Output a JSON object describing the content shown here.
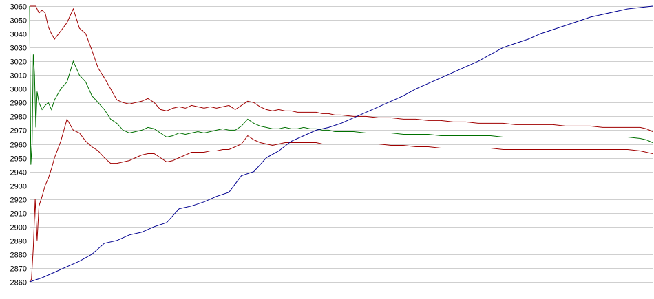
{
  "chart_data": {
    "type": "line",
    "title": "",
    "xlabel": "",
    "ylabel": "",
    "ylim": [
      2860,
      3060
    ],
    "xlim": [
      0,
      100
    ],
    "yticks": [
      2860,
      2870,
      2880,
      2890,
      2900,
      2910,
      2920,
      2930,
      2940,
      2950,
      2960,
      2970,
      2980,
      2990,
      3000,
      3010,
      3020,
      3030,
      3040,
      3050,
      3060
    ],
    "grid": "horizontal",
    "legend": "none",
    "colors": {
      "upper": "#a00000",
      "middle": "#007000",
      "lower": "#a00000",
      "rising": "#000090",
      "grid": "#cfcfcf",
      "axis": "#9a9a9a"
    },
    "series": [
      {
        "key": "upper",
        "x": [
          0,
          0.5,
          1,
          1.5,
          2,
          2.5,
          3,
          3.5,
          4,
          5,
          6,
          7,
          8,
          9,
          10,
          11,
          12,
          13,
          14,
          15,
          16,
          17,
          18,
          19,
          20,
          21,
          22,
          23,
          24,
          25,
          26,
          27,
          28,
          29,
          30,
          31,
          32,
          33,
          34,
          35,
          36,
          37,
          38,
          39,
          40,
          41,
          42,
          43,
          44,
          45,
          46,
          47,
          48,
          49,
          50,
          52,
          54,
          56,
          58,
          60,
          62,
          64,
          66,
          68,
          70,
          72,
          74,
          76,
          78,
          80,
          82,
          84,
          86,
          88,
          90,
          92,
          94,
          96,
          98,
          99,
          100
        ],
        "y": [
          3060,
          3060,
          3060,
          3055,
          3057,
          3055,
          3045,
          3040,
          3036,
          3042,
          3048,
          3058,
          3044,
          3040,
          3028,
          3015,
          3008,
          3000,
          2992,
          2990,
          2989,
          2990,
          2991,
          2993,
          2990,
          2985,
          2984,
          2986,
          2987,
          2986,
          2988,
          2987,
          2986,
          2987,
          2986,
          2987,
          2988,
          2985,
          2988,
          2991,
          2990,
          2987,
          2985,
          2984,
          2985,
          2984,
          2984,
          2983,
          2983,
          2983,
          2983,
          2982,
          2982,
          2981,
          2981,
          2980,
          2980,
          2979,
          2979,
          2978,
          2978,
          2977,
          2977,
          2976,
          2976,
          2975,
          2975,
          2975,
          2974,
          2974,
          2974,
          2974,
          2973,
          2973,
          2973,
          2972,
          2972,
          2972,
          2972,
          2971,
          2969
        ]
      },
      {
        "key": "middle",
        "x": [
          0,
          0.2,
          0.4,
          0.6,
          0.8,
          1,
          1.2,
          1.5,
          2,
          2.5,
          3,
          3.5,
          4,
          5,
          6,
          7,
          8,
          9,
          10,
          11,
          12,
          13,
          14,
          15,
          16,
          17,
          18,
          19,
          20,
          21,
          22,
          23,
          24,
          25,
          26,
          27,
          28,
          29,
          30,
          31,
          32,
          33,
          34,
          35,
          36,
          37,
          38,
          39,
          40,
          41,
          42,
          43,
          44,
          45,
          46,
          47,
          48,
          49,
          50,
          52,
          54,
          56,
          58,
          60,
          62,
          64,
          66,
          68,
          70,
          72,
          74,
          76,
          78,
          80,
          82,
          84,
          86,
          88,
          90,
          92,
          94,
          96,
          98,
          99,
          100
        ],
        "y": [
          3060,
          2945,
          2960,
          3025,
          3010,
          2972,
          2998,
          2990,
          2985,
          2988,
          2990,
          2985,
          2992,
          3000,
          3005,
          3020,
          3010,
          3005,
          2995,
          2990,
          2985,
          2978,
          2975,
          2970,
          2968,
          2969,
          2970,
          2972,
          2971,
          2968,
          2965,
          2966,
          2968,
          2967,
          2968,
          2969,
          2968,
          2969,
          2970,
          2971,
          2970,
          2970,
          2973,
          2978,
          2975,
          2973,
          2972,
          2971,
          2971,
          2972,
          2971,
          2971,
          2972,
          2971,
          2971,
          2970,
          2970,
          2969,
          2969,
          2969,
          2968,
          2968,
          2968,
          2967,
          2967,
          2967,
          2966,
          2966,
          2966,
          2966,
          2966,
          2965,
          2965,
          2965,
          2965,
          2965,
          2965,
          2965,
          2965,
          2965,
          2965,
          2965,
          2964,
          2963,
          2961
        ]
      },
      {
        "key": "lower",
        "x": [
          0,
          0.3,
          0.6,
          0.9,
          1.2,
          1.5,
          2,
          2.5,
          3,
          3.5,
          4,
          5,
          6,
          7,
          8,
          9,
          10,
          11,
          12,
          13,
          14,
          15,
          16,
          17,
          18,
          19,
          20,
          21,
          22,
          23,
          24,
          25,
          26,
          27,
          28,
          29,
          30,
          31,
          32,
          33,
          34,
          35,
          36,
          37,
          38,
          39,
          40,
          41,
          42,
          43,
          44,
          45,
          46,
          47,
          48,
          49,
          50,
          52,
          54,
          56,
          58,
          60,
          62,
          64,
          66,
          68,
          70,
          72,
          74,
          76,
          78,
          80,
          82,
          84,
          86,
          88,
          90,
          92,
          94,
          96,
          98,
          99,
          100
        ],
        "y": [
          2860,
          2862,
          2885,
          2920,
          2890,
          2915,
          2922,
          2930,
          2935,
          2942,
          2950,
          2962,
          2978,
          2970,
          2968,
          2962,
          2958,
          2955,
          2950,
          2946,
          2946,
          2947,
          2948,
          2950,
          2952,
          2953,
          2953,
          2950,
          2947,
          2948,
          2950,
          2952,
          2954,
          2954,
          2954,
          2955,
          2955,
          2956,
          2956,
          2958,
          2960,
          2966,
          2963,
          2961,
          2960,
          2959,
          2960,
          2961,
          2961,
          2961,
          2961,
          2961,
          2961,
          2960,
          2960,
          2960,
          2960,
          2960,
          2960,
          2960,
          2959,
          2959,
          2958,
          2958,
          2957,
          2957,
          2957,
          2957,
          2957,
          2956,
          2956,
          2956,
          2956,
          2956,
          2956,
          2956,
          2956,
          2956,
          2956,
          2956,
          2955,
          2954,
          2953
        ]
      },
      {
        "key": "rising",
        "x": [
          0,
          2,
          4,
          6,
          8,
          10,
          12,
          14,
          16,
          18,
          20,
          22,
          24,
          26,
          28,
          30,
          32,
          34,
          36,
          38,
          40,
          42,
          44,
          46,
          48,
          50,
          52,
          54,
          56,
          58,
          60,
          62,
          64,
          66,
          68,
          70,
          72,
          74,
          76,
          78,
          80,
          82,
          84,
          86,
          88,
          90,
          92,
          94,
          96,
          98,
          100
        ],
        "y": [
          2860,
          2863,
          2867,
          2871,
          2875,
          2880,
          2888,
          2890,
          2894,
          2896,
          2900,
          2903,
          2913,
          2915,
          2918,
          2922,
          2925,
          2937,
          2940,
          2950,
          2955,
          2962,
          2966,
          2970,
          2972,
          2975,
          2979,
          2983,
          2987,
          2991,
          2995,
          3000,
          3004,
          3008,
          3012,
          3016,
          3020,
          3025,
          3030,
          3033,
          3036,
          3040,
          3043,
          3046,
          3049,
          3052,
          3054,
          3056,
          3058,
          3059,
          3060
        ]
      }
    ]
  }
}
